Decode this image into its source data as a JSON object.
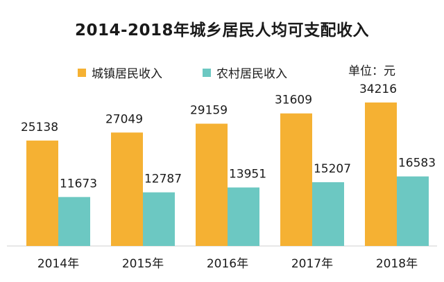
{
  "chart_data": {
    "type": "bar",
    "title": "2014-2018年城乡居民人均可支配收入",
    "unit_note": "单位：元",
    "categories": [
      "2014年",
      "2015年",
      "2016年",
      "2017年",
      "2018年"
    ],
    "series": [
      {
        "name": "城镇居民收入",
        "values": [
          25138,
          27049,
          29159,
          31609,
          34216
        ]
      },
      {
        "name": "农村居民收入",
        "values": [
          11673,
          12787,
          13951,
          15207,
          16583
        ]
      }
    ],
    "ylim": [
      0,
      38000
    ],
    "grid": false,
    "legend_position": "top-left"
  },
  "colors": {
    "urban": "#F5B133",
    "rural": "#6CC8C2",
    "axis": "#cfcfcf",
    "text": "#1a1a1a"
  }
}
